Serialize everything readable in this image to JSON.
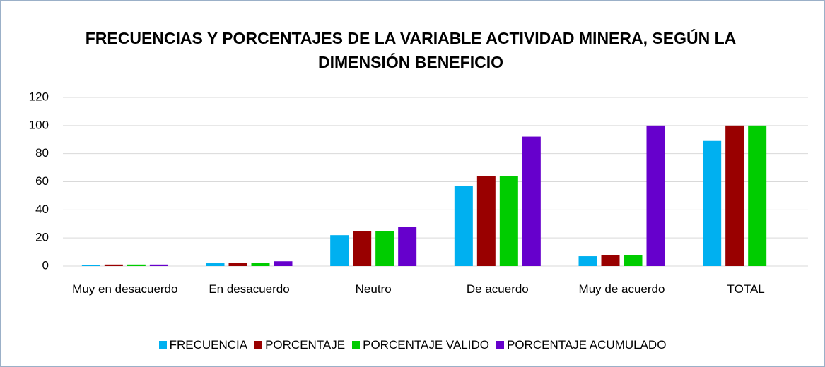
{
  "chart_data": {
    "type": "bar",
    "title": "FRECUENCIAS Y PORCENTAJES DE LA VARIABLE ACTIVIDAD MINERA, SEGÚN LA DIMENSIÓN BENEFICIO",
    "categories": [
      "Muy en desacuerdo",
      "En desacuerdo",
      "Neutro",
      "De acuerdo",
      "Muy de acuerdo",
      "TOTAL"
    ],
    "series": [
      {
        "name": "FRECUENCIA",
        "color": "#00b0f0",
        "values": [
          1,
          2,
          22,
          57,
          7,
          89
        ]
      },
      {
        "name": "PORCENTAJE",
        "color": "#990000",
        "values": [
          1.1,
          2.2,
          24.7,
          64,
          7.9,
          100
        ]
      },
      {
        "name": "PORCENTAJE VALIDO",
        "color": "#00cc00",
        "values": [
          1.1,
          2.2,
          24.7,
          64,
          7.9,
          100
        ]
      },
      {
        "name": "PORCENTAJE ACUMULADO",
        "color": "#6600cc",
        "values": [
          1.1,
          3.4,
          28.1,
          92.1,
          100,
          null
        ]
      }
    ],
    "ylim": [
      0,
      120
    ],
    "yticks": [
      0,
      20,
      40,
      60,
      80,
      100,
      120
    ],
    "grid": true,
    "legend": "bottom"
  }
}
